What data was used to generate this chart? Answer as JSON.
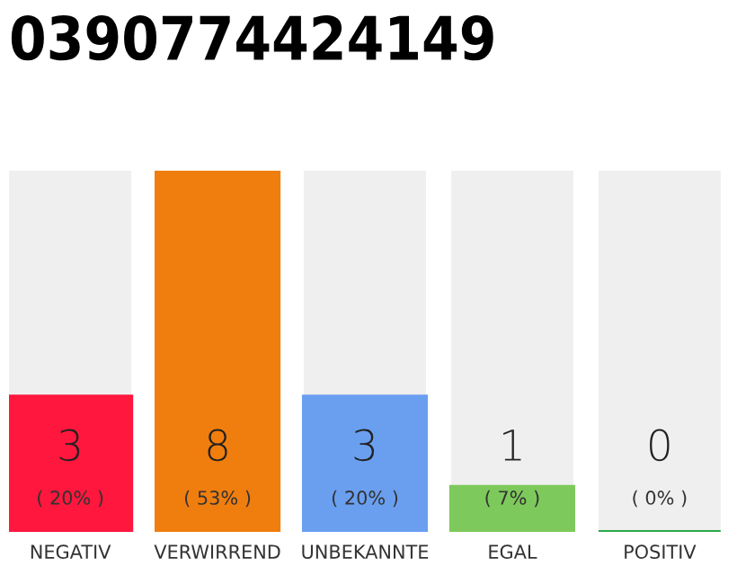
{
  "chart_data": {
    "type": "bar",
    "title": "0390774424149",
    "categories": [
      "NEGATIV",
      "VERWIRREND",
      "UNBEKANNTE",
      "EGAL",
      "POSITIV"
    ],
    "values": [
      3,
      8,
      3,
      1,
      0
    ],
    "ylim": [
      0,
      8
    ],
    "colors": [
      "#ff173d",
      "#f07e0e",
      "#6a9ff0",
      "#7ec95c",
      "#2aa84a"
    ],
    "value_labels": [
      "3\n( 20% )",
      "8\n( 53% )",
      "3\n( 20% )",
      "1\n( 7% )",
      "0\n( 0% )"
    ],
    "grid": false,
    "legend": false
  }
}
